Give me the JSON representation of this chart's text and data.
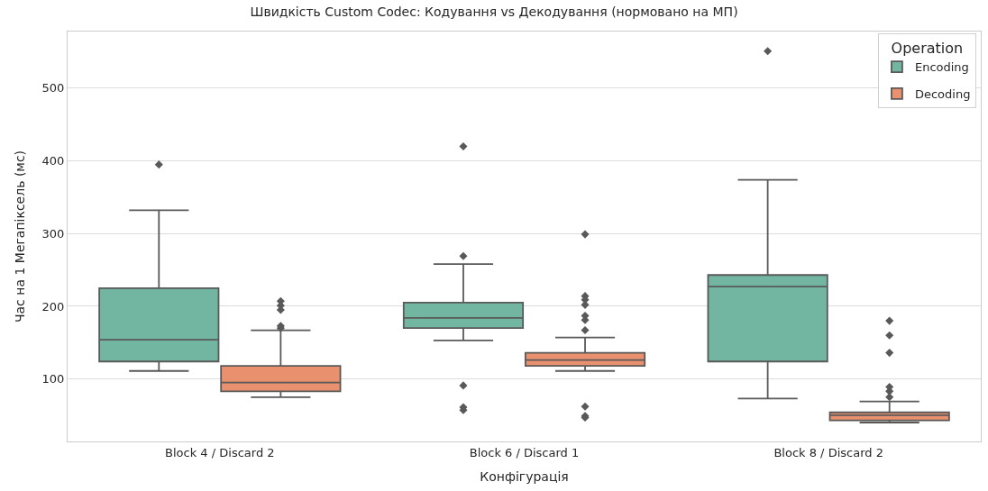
{
  "chart_data": {
    "type": "box",
    "title": "Швидкість Custom Codec: Кодування vs Декодування (нормовано на МП)",
    "xlabel": "Конфігурація",
    "ylabel": "Час на 1 Мегапіксель (мс)",
    "legend_title": "Operation",
    "categories": [
      "Block 4 / Discard 2",
      "Block 6 / Discard 1",
      "Block 8 / Discard 2"
    ],
    "series": [
      {
        "name": "Encoding",
        "color": "#72b6a1",
        "boxes": [
          {
            "low": 111,
            "q1": 124,
            "median": 154,
            "q3": 225,
            "high": 332,
            "outliers": [
              395
            ]
          },
          {
            "low": 153,
            "q1": 170,
            "median": 184,
            "q3": 205,
            "high": 258,
            "outliers": [
              420,
              269,
              91,
              61,
              57
            ]
          },
          {
            "low": 73,
            "q1": 124,
            "median": 227,
            "q3": 243,
            "high": 374,
            "outliers": [
              551
            ]
          }
        ]
      },
      {
        "name": "Decoding",
        "color": "#e9916f",
        "boxes": [
          {
            "low": 75,
            "q1": 83,
            "median": 95,
            "q3": 118,
            "high": 167,
            "outliers": [
              207,
              201,
              195,
              173,
              170
            ]
          },
          {
            "low": 111,
            "q1": 118,
            "median": 126,
            "q3": 136,
            "high": 157,
            "outliers": [
              299,
              214,
              209,
              202,
              187,
              181,
              167,
              62,
              49,
              47
            ]
          },
          {
            "low": 40,
            "q1": 43,
            "median": 50,
            "q3": 54,
            "high": 69,
            "outliers": [
              180,
              160,
              136,
              89,
              83,
              75
            ]
          }
        ]
      }
    ],
    "ylim": [
      14,
      578
    ],
    "yticks": [
      100,
      200,
      300,
      400,
      500
    ],
    "grid": "y",
    "legend": "top right",
    "marker": "diamond"
  }
}
